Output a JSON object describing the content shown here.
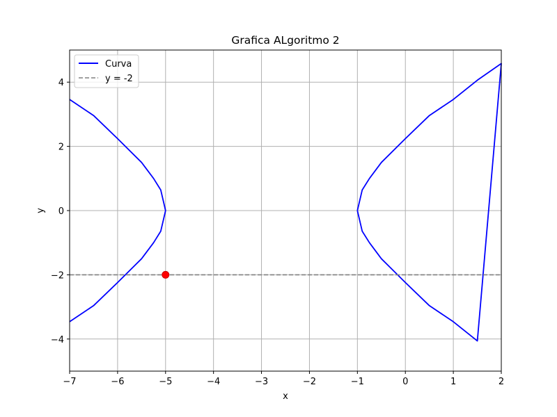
{
  "chart_data": {
    "type": "line",
    "title": "Grafica ALgoritmo 2",
    "xlabel": "x",
    "ylabel": "y",
    "xlim": [
      -7,
      2
    ],
    "ylim": [
      -5,
      5
    ],
    "xticks": [
      -7,
      -6,
      -5,
      -4,
      -3,
      -2,
      -1,
      0,
      1,
      2
    ],
    "yticks": [
      -4,
      -2,
      0,
      2,
      4
    ],
    "xtick_labels": [
      "−7",
      "−6",
      "−5",
      "−4",
      "−3",
      "−2",
      "−1",
      "0",
      "1",
      "2"
    ],
    "ytick_labels": [
      "−4",
      "−2",
      "0",
      "2",
      "4"
    ],
    "grid": true,
    "legend_position": "top-left",
    "series": [
      {
        "name": "Curva",
        "style": "solid",
        "color": "#0000ff",
        "segments": [
          {
            "x": [
              -7.0,
              -6.5,
              -6.0,
              -5.5,
              -5.25,
              -5.1,
              -5.0,
              -5.1,
              -5.25,
              -5.5,
              -6.0,
              -6.5,
              -7.0
            ],
            "y": [
              3.46,
              2.96,
              2.24,
              1.5,
              1.0,
              0.64,
              0.0,
              -0.64,
              -1.0,
              -1.5,
              -2.24,
              -2.96,
              -3.46
            ]
          },
          {
            "x": [
              -1.0,
              -0.9,
              -0.75,
              -0.5,
              0.0,
              0.5,
              1.0,
              1.5,
              2.0,
              1.5,
              1.0,
              0.5,
              0.0,
              -0.5,
              -0.75,
              -0.9,
              -1.0
            ],
            "y": [
              0.0,
              0.64,
              1.0,
              1.5,
              2.24,
              2.96,
              3.46,
              4.06,
              4.58,
              -4.06,
              -3.46,
              -2.96,
              -2.24,
              -1.5,
              -1.0,
              -0.64,
              0.0
            ]
          }
        ]
      },
      {
        "name": "y = -2",
        "style": "dashed",
        "color": "#808080",
        "x": [
          -7,
          2
        ],
        "y": [
          -2,
          -2
        ]
      }
    ],
    "points": [
      {
        "x": -5,
        "y": -2,
        "color": "#ff0000"
      }
    ]
  }
}
